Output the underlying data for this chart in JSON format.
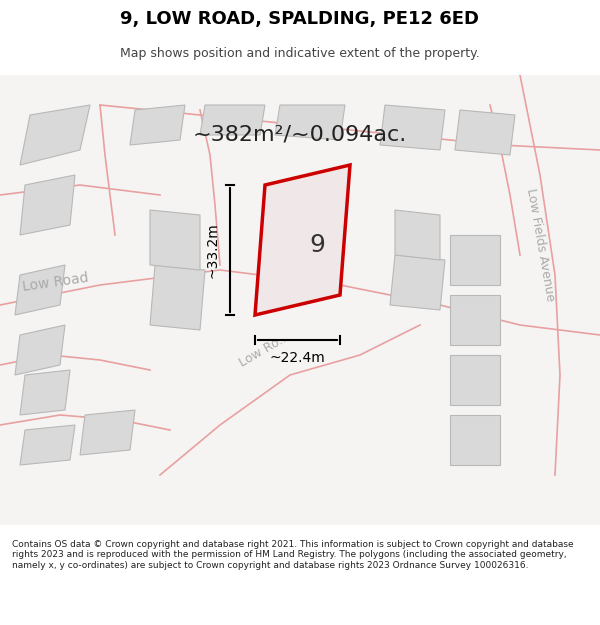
{
  "title": "9, LOW ROAD, SPALDING, PE12 6ED",
  "subtitle": "Map shows position and indicative extent of the property.",
  "area_text": "~382m²/~0.094ac.",
  "plot_number": "9",
  "dim_width": "~22.4m",
  "dim_height": "~33.2m",
  "background_color": "#f0eeec",
  "map_bg": "#f5f4f2",
  "road_color": "#f5f4f2",
  "building_color": "#d9d9d9",
  "building_outline": "#b0b0b0",
  "road_line_color": "#e8a0a0",
  "highlight_color": "#cc0000",
  "highlight_fill": "#f0e8e8",
  "road_label_color": "#aaaaaa",
  "footer_text": "Contains OS data © Crown copyright and database right 2021. This information is subject to Crown copyright and database rights 2023 and is reproduced with the permission of HM Land Registry. The polygons (including the associated geometry, namely x, y co-ordinates) are subject to Crown copyright and database rights 2023 Ordnance Survey 100026316.",
  "figsize": [
    6.0,
    6.25
  ],
  "dpi": 100
}
